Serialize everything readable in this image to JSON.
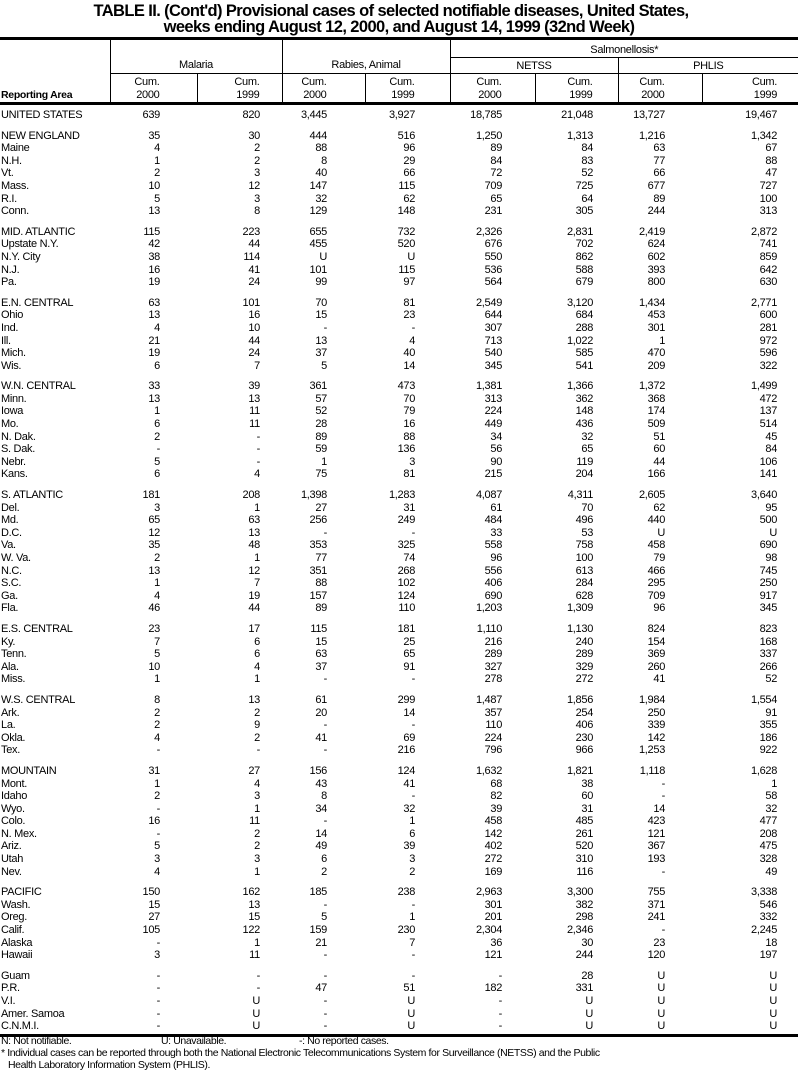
{
  "title": {
    "line1": "TABLE II. (Cont'd) Provisional cases of selected notifiable diseases, United States,",
    "line2": "weeks ending August 12, 2000, and August 14, 1999 (32nd Week)"
  },
  "header": {
    "reporting_area": "Reporting Area",
    "salmonellosis": "Salmonellosis*",
    "malaria": "Malaria",
    "rabies": "Rabies, Animal",
    "netss": "NETSS",
    "phlis": "PHLIS",
    "cum": "Cum.",
    "y2000": "2000",
    "y1999": "1999"
  },
  "groups": [
    [
      [
        "UNITED STATES",
        "639",
        "820",
        "3,445",
        "3,927",
        "18,785",
        "21,048",
        "13,727",
        "19,467"
      ]
    ],
    [
      [
        "NEW ENGLAND",
        "35",
        "30",
        "444",
        "516",
        "1,250",
        "1,313",
        "1,216",
        "1,342"
      ],
      [
        "Maine",
        "4",
        "2",
        "88",
        "96",
        "89",
        "84",
        "63",
        "67"
      ],
      [
        "N.H.",
        "1",
        "2",
        "8",
        "29",
        "84",
        "83",
        "77",
        "88"
      ],
      [
        "Vt.",
        "2",
        "3",
        "40",
        "66",
        "72",
        "52",
        "66",
        "47"
      ],
      [
        "Mass.",
        "10",
        "12",
        "147",
        "115",
        "709",
        "725",
        "677",
        "727"
      ],
      [
        "R.I.",
        "5",
        "3",
        "32",
        "62",
        "65",
        "64",
        "89",
        "100"
      ],
      [
        "Conn.",
        "13",
        "8",
        "129",
        "148",
        "231",
        "305",
        "244",
        "313"
      ]
    ],
    [
      [
        "MID. ATLANTIC",
        "115",
        "223",
        "655",
        "732",
        "2,326",
        "2,831",
        "2,419",
        "2,872"
      ],
      [
        "Upstate N.Y.",
        "42",
        "44",
        "455",
        "520",
        "676",
        "702",
        "624",
        "741"
      ],
      [
        "N.Y. City",
        "38",
        "114",
        "U",
        "U",
        "550",
        "862",
        "602",
        "859"
      ],
      [
        "N.J.",
        "16",
        "41",
        "101",
        "115",
        "536",
        "588",
        "393",
        "642"
      ],
      [
        "Pa.",
        "19",
        "24",
        "99",
        "97",
        "564",
        "679",
        "800",
        "630"
      ]
    ],
    [
      [
        "E.N. CENTRAL",
        "63",
        "101",
        "70",
        "81",
        "2,549",
        "3,120",
        "1,434",
        "2,771"
      ],
      [
        "Ohio",
        "13",
        "16",
        "15",
        "23",
        "644",
        "684",
        "453",
        "600"
      ],
      [
        "Ind.",
        "4",
        "10",
        "-",
        "-",
        "307",
        "288",
        "301",
        "281"
      ],
      [
        "Ill.",
        "21",
        "44",
        "13",
        "4",
        "713",
        "1,022",
        "1",
        "972"
      ],
      [
        "Mich.",
        "19",
        "24",
        "37",
        "40",
        "540",
        "585",
        "470",
        "596"
      ],
      [
        "Wis.",
        "6",
        "7",
        "5",
        "14",
        "345",
        "541",
        "209",
        "322"
      ]
    ],
    [
      [
        "W.N. CENTRAL",
        "33",
        "39",
        "361",
        "473",
        "1,381",
        "1,366",
        "1,372",
        "1,499"
      ],
      [
        "Minn.",
        "13",
        "13",
        "57",
        "70",
        "313",
        "362",
        "368",
        "472"
      ],
      [
        "Iowa",
        "1",
        "11",
        "52",
        "79",
        "224",
        "148",
        "174",
        "137"
      ],
      [
        "Mo.",
        "6",
        "11",
        "28",
        "16",
        "449",
        "436",
        "509",
        "514"
      ],
      [
        "N. Dak.",
        "2",
        "-",
        "89",
        "88",
        "34",
        "32",
        "51",
        "45"
      ],
      [
        "S. Dak.",
        "-",
        "-",
        "59",
        "136",
        "56",
        "65",
        "60",
        "84"
      ],
      [
        "Nebr.",
        "5",
        "-",
        "1",
        "3",
        "90",
        "119",
        "44",
        "106"
      ],
      [
        "Kans.",
        "6",
        "4",
        "75",
        "81",
        "215",
        "204",
        "166",
        "141"
      ]
    ],
    [
      [
        "S. ATLANTIC",
        "181",
        "208",
        "1,398",
        "1,283",
        "4,087",
        "4,311",
        "2,605",
        "3,640"
      ],
      [
        "Del.",
        "3",
        "1",
        "27",
        "31",
        "61",
        "70",
        "62",
        "95"
      ],
      [
        "Md.",
        "65",
        "63",
        "256",
        "249",
        "484",
        "496",
        "440",
        "500"
      ],
      [
        "D.C.",
        "12",
        "13",
        "-",
        "-",
        "33",
        "53",
        "U",
        "U"
      ],
      [
        "Va.",
        "35",
        "48",
        "353",
        "325",
        "558",
        "758",
        "458",
        "690"
      ],
      [
        "W. Va.",
        "2",
        "1",
        "77",
        "74",
        "96",
        "100",
        "79",
        "98"
      ],
      [
        "N.C.",
        "13",
        "12",
        "351",
        "268",
        "556",
        "613",
        "466",
        "745"
      ],
      [
        "S.C.",
        "1",
        "7",
        "88",
        "102",
        "406",
        "284",
        "295",
        "250"
      ],
      [
        "Ga.",
        "4",
        "19",
        "157",
        "124",
        "690",
        "628",
        "709",
        "917"
      ],
      [
        "Fla.",
        "46",
        "44",
        "89",
        "110",
        "1,203",
        "1,309",
        "96",
        "345"
      ]
    ],
    [
      [
        "E.S. CENTRAL",
        "23",
        "17",
        "115",
        "181",
        "1,110",
        "1,130",
        "824",
        "823"
      ],
      [
        "Ky.",
        "7",
        "6",
        "15",
        "25",
        "216",
        "240",
        "154",
        "168"
      ],
      [
        "Tenn.",
        "5",
        "6",
        "63",
        "65",
        "289",
        "289",
        "369",
        "337"
      ],
      [
        "Ala.",
        "10",
        "4",
        "37",
        "91",
        "327",
        "329",
        "260",
        "266"
      ],
      [
        "Miss.",
        "1",
        "1",
        "-",
        "-",
        "278",
        "272",
        "41",
        "52"
      ]
    ],
    [
      [
        "W.S. CENTRAL",
        "8",
        "13",
        "61",
        "299",
        "1,487",
        "1,856",
        "1,984",
        "1,554"
      ],
      [
        "Ark.",
        "2",
        "2",
        "20",
        "14",
        "357",
        "254",
        "250",
        "91"
      ],
      [
        "La.",
        "2",
        "9",
        "-",
        "-",
        "110",
        "406",
        "339",
        "355"
      ],
      [
        "Okla.",
        "4",
        "2",
        "41",
        "69",
        "224",
        "230",
        "142",
        "186"
      ],
      [
        "Tex.",
        "-",
        "-",
        "-",
        "216",
        "796",
        "966",
        "1,253",
        "922"
      ]
    ],
    [
      [
        "MOUNTAIN",
        "31",
        "27",
        "156",
        "124",
        "1,632",
        "1,821",
        "1,118",
        "1,628"
      ],
      [
        "Mont.",
        "1",
        "4",
        "43",
        "41",
        "68",
        "38",
        "-",
        "1"
      ],
      [
        "Idaho",
        "2",
        "3",
        "8",
        "-",
        "82",
        "60",
        "-",
        "58"
      ],
      [
        "Wyo.",
        "-",
        "1",
        "34",
        "32",
        "39",
        "31",
        "14",
        "32"
      ],
      [
        "Colo.",
        "16",
        "11",
        "-",
        "1",
        "458",
        "485",
        "423",
        "477"
      ],
      [
        "N. Mex.",
        "-",
        "2",
        "14",
        "6",
        "142",
        "261",
        "121",
        "208"
      ],
      [
        "Ariz.",
        "5",
        "2",
        "49",
        "39",
        "402",
        "520",
        "367",
        "475"
      ],
      [
        "Utah",
        "3",
        "3",
        "6",
        "3",
        "272",
        "310",
        "193",
        "328"
      ],
      [
        "Nev.",
        "4",
        "1",
        "2",
        "2",
        "169",
        "116",
        "-",
        "49"
      ]
    ],
    [
      [
        "PACIFIC",
        "150",
        "162",
        "185",
        "238",
        "2,963",
        "3,300",
        "755",
        "3,338"
      ],
      [
        "Wash.",
        "15",
        "13",
        "-",
        "-",
        "301",
        "382",
        "371",
        "546"
      ],
      [
        "Oreg.",
        "27",
        "15",
        "5",
        "1",
        "201",
        "298",
        "241",
        "332"
      ],
      [
        "Calif.",
        "105",
        "122",
        "159",
        "230",
        "2,304",
        "2,346",
        "-",
        "2,245"
      ],
      [
        "Alaska",
        "-",
        "1",
        "21",
        "7",
        "36",
        "30",
        "23",
        "18"
      ],
      [
        "Hawaii",
        "3",
        "11",
        "-",
        "-",
        "121",
        "244",
        "120",
        "197"
      ]
    ],
    [
      [
        "Guam",
        "-",
        "-",
        "-",
        "-",
        "-",
        "28",
        "U",
        "U"
      ],
      [
        "P.R.",
        "-",
        "-",
        "47",
        "51",
        "182",
        "331",
        "U",
        "U"
      ],
      [
        "V.I.",
        "-",
        "U",
        "-",
        "U",
        "-",
        "U",
        "U",
        "U"
      ],
      [
        "Amer. Samoa",
        "-",
        "U",
        "-",
        "U",
        "-",
        "U",
        "U",
        "U"
      ],
      [
        "C.N.M.I.",
        "-",
        "U",
        "-",
        "U",
        "-",
        "U",
        "U",
        "U"
      ]
    ]
  ],
  "footnotes": {
    "n": "N: Not notifiable.",
    "u": "U: Unavailable.",
    "dash": "-: No reported cases.",
    "star1": "* Individual cases can be reported through both the National Electronic Telecommunications System for Surveillance (NETSS) and the Public",
    "star2": "Health Laboratory Information System (PHLIS)."
  }
}
